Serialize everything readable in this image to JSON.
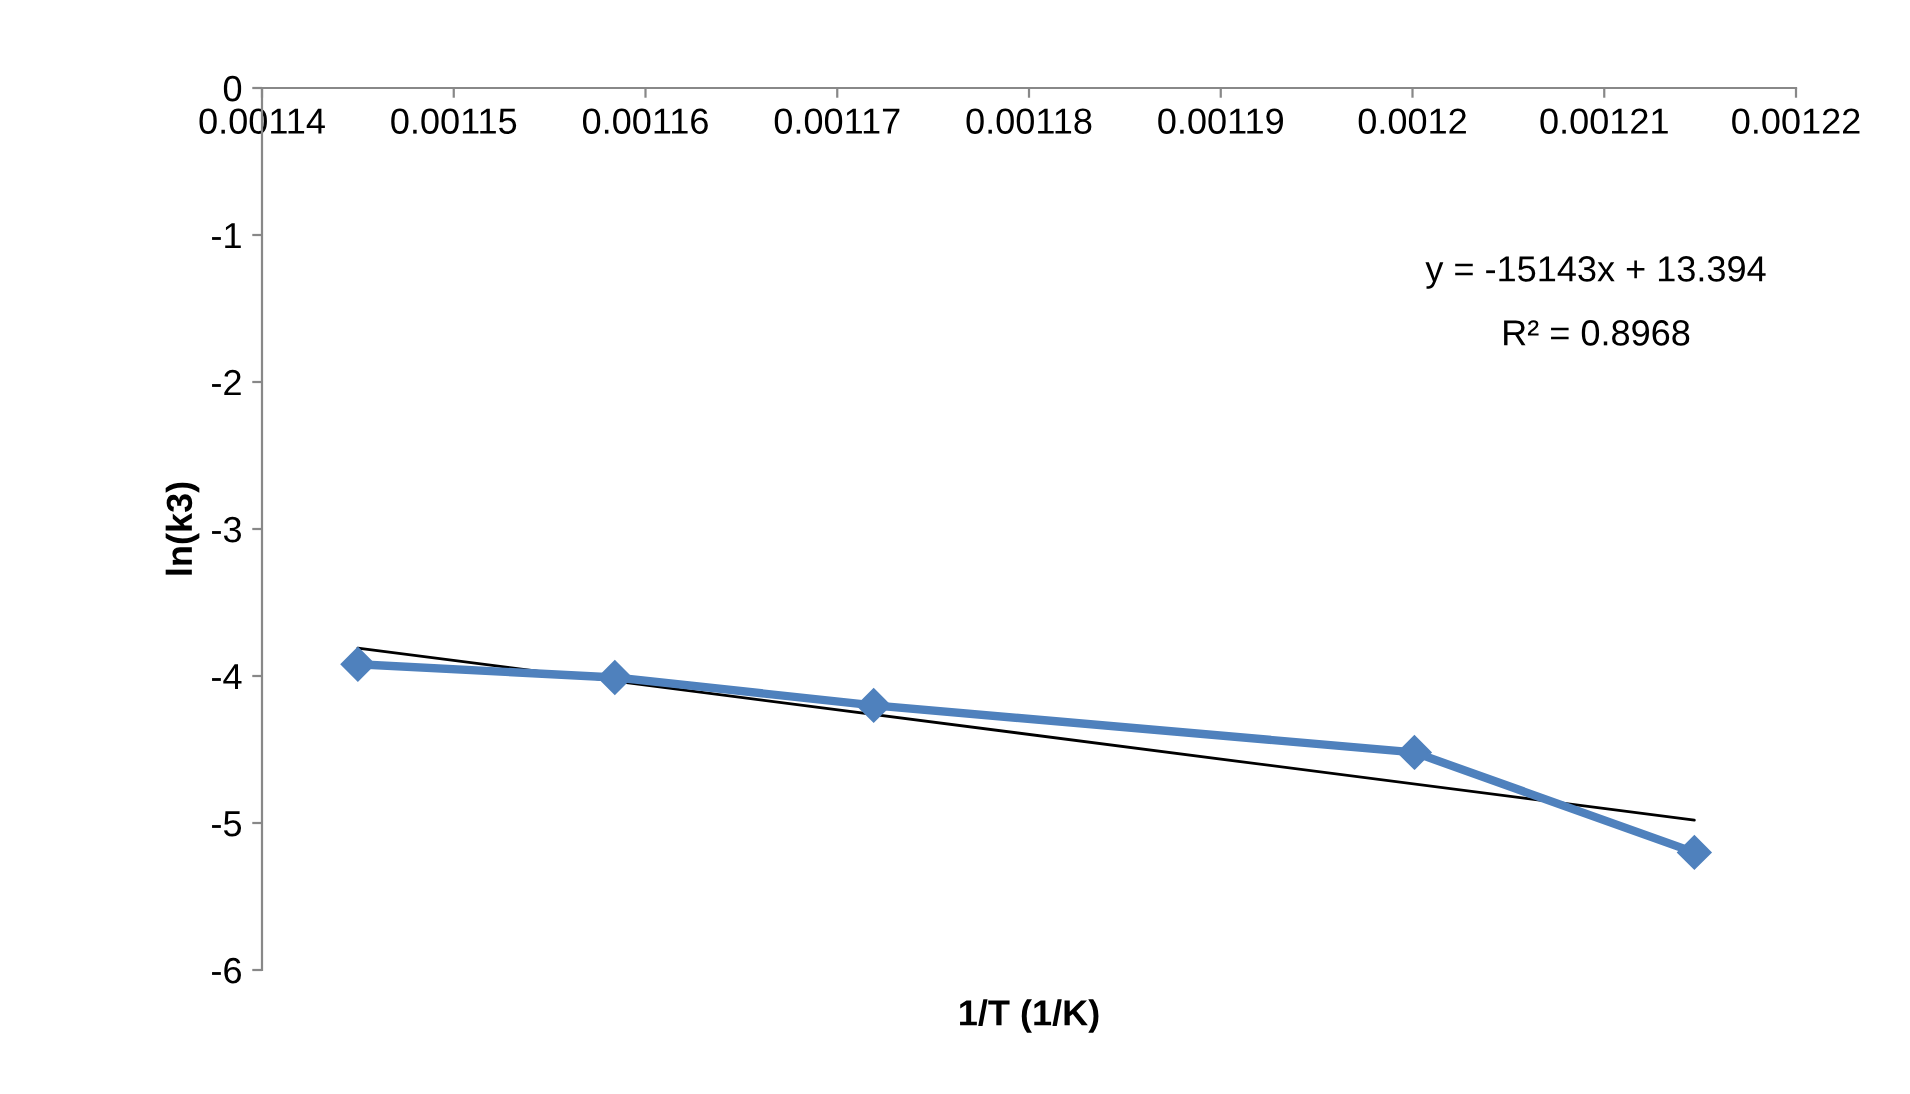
{
  "chart_data": {
    "type": "line",
    "xlabel": "1/T (1/K)",
    "ylabel": "ln(k3)",
    "xlim": [
      0.00114,
      0.00122
    ],
    "xticks": [
      0.00114,
      0.00115,
      0.00116,
      0.00117,
      0.00118,
      0.00119,
      0.0012,
      0.00121,
      0.00122
    ],
    "ylim": [
      -6,
      0
    ],
    "yticks": [
      -6,
      -5,
      -4,
      -3,
      -2,
      -1,
      0
    ],
    "grid": false,
    "legend": false,
    "series": [
      {
        "color": "#4f81bd",
        "marker": "diamond",
        "line_style": "solid",
        "x": [
          0.001145,
          0.0011584,
          0.0011719,
          0.0012001,
          0.0012147
        ],
        "values": [
          -3.92,
          -4.01,
          -4.2,
          -4.52,
          -5.2
        ]
      },
      {
        "color": "#000000",
        "marker": "none",
        "line_style": "solid",
        "x": [
          0.001145,
          0.0012147
        ],
        "values": [
          -3.81,
          -4.98
        ]
      }
    ],
    "annotations": [
      "y = -15143x + 13.394",
      "R² = 0.8968"
    ]
  }
}
